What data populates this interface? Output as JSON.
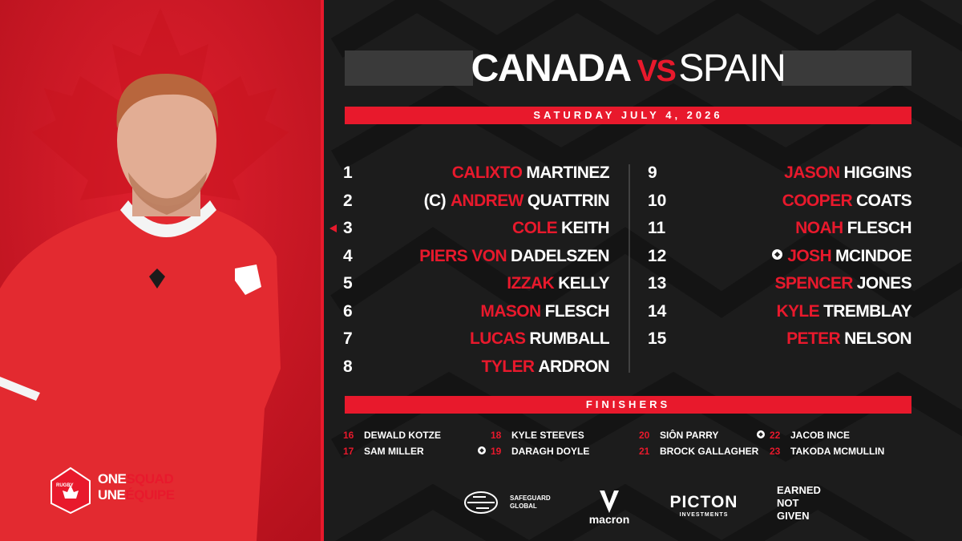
{
  "header": {
    "team_home": "CANADA",
    "versus": "VS",
    "team_away": "SPAIN",
    "date": "SATURDAY JULY 4, 2026"
  },
  "starters": [
    {
      "number": "1",
      "first_name": "CALIXTO",
      "last_name": "MARTINEZ"
    },
    {
      "number": "2",
      "prefix": "(C)",
      "first_name": "ANDREW",
      "last_name": "QUATTRIN"
    },
    {
      "number": "3",
      "first_name": "COLE",
      "last_name": "KEITH",
      "featured": true
    },
    {
      "number": "4",
      "first_name": "PIERS VON",
      "last_name": "DADELSZEN"
    },
    {
      "number": "5",
      "first_name": "IZZAK",
      "last_name": "KELLY"
    },
    {
      "number": "6",
      "first_name": "MASON",
      "last_name": "FLESCH"
    },
    {
      "number": "7",
      "first_name": "LUCAS",
      "last_name": "RUMBALL"
    },
    {
      "number": "8",
      "first_name": "TYLER",
      "last_name": "ARDRON"
    },
    {
      "number": "9",
      "first_name": "JASON",
      "last_name": "HIGGINS"
    },
    {
      "number": "10",
      "first_name": "COOPER",
      "last_name": "COATS"
    },
    {
      "number": "11",
      "first_name": "NOAH",
      "last_name": "FLESCH"
    },
    {
      "number": "12",
      "first_name": "JOSH",
      "last_name": "MCINDOE",
      "debut": true
    },
    {
      "number": "13",
      "first_name": "SPENCER",
      "last_name": "JONES"
    },
    {
      "number": "14",
      "first_name": "KYLE",
      "last_name": "TREMBLAY"
    },
    {
      "number": "15",
      "first_name": "PETER",
      "last_name": "NELSON"
    }
  ],
  "finishers_title": "FINISHERS",
  "finishers": [
    {
      "number": "16",
      "name": "DEWALD KOTZE"
    },
    {
      "number": "17",
      "name": "SAM MILLER"
    },
    {
      "number": "18",
      "name": "KYLE STEEVES"
    },
    {
      "number": "19",
      "name": "DARAGH DOYLE",
      "debut": true
    },
    {
      "number": "20",
      "name": "SIÔN PARRY"
    },
    {
      "number": "21",
      "name": "BROCK GALLAGHER"
    },
    {
      "number": "22",
      "name": "JACOB INCE",
      "debut": true
    },
    {
      "number": "23",
      "name": "TAKODA MCMULLIN"
    }
  ],
  "branding": {
    "badge": "RUGBY",
    "slogan_en": [
      "ONE",
      "SQUAD"
    ],
    "slogan_fr": [
      "UNE",
      "ÉQUIPE"
    ]
  },
  "sponsors": {
    "safeguard": [
      "SAFEGUARD",
      "GLOBAL"
    ],
    "macron": "macron",
    "picton": [
      "PICTON",
      "INVESTMENTS"
    ],
    "motto": [
      "EARNED",
      "NOT",
      "GIVEN"
    ]
  }
}
